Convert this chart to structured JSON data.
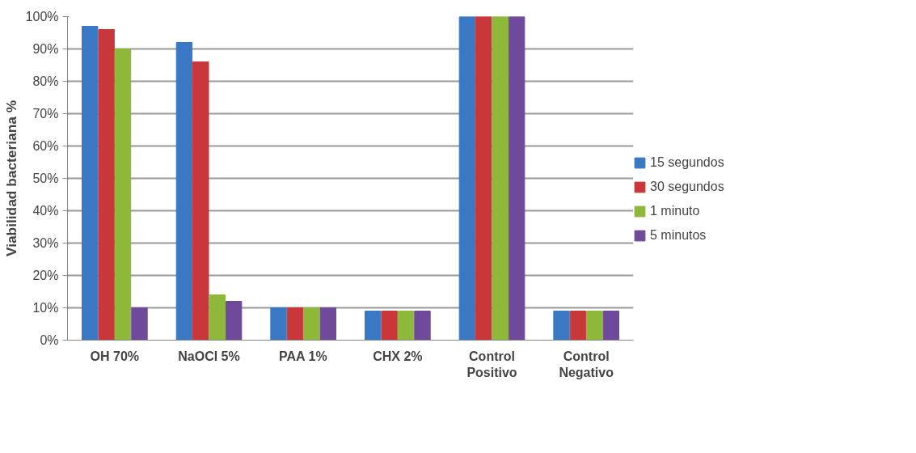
{
  "chart_data": {
    "type": "bar",
    "ylabel": "Viabilidad bacteriana %",
    "categories": [
      "OH 70%",
      "NaOCl 5%",
      "PAA 1%",
      "CHX 2%",
      "Control\nPositivo",
      "Control\nNegativo"
    ],
    "series": [
      {
        "name": "15 segundos",
        "color": "#3a78c4",
        "values": [
          97,
          92,
          10,
          9,
          100,
          9
        ]
      },
      {
        "name": "30 segundos",
        "color": "#c8383a",
        "values": [
          96,
          86,
          10,
          9,
          100,
          9
        ]
      },
      {
        "name": "1 minuto",
        "color": "#8db83a",
        "values": [
          90,
          14,
          10,
          9,
          100,
          9
        ]
      },
      {
        "name": "5 minutos",
        "color": "#6f4a9a",
        "values": [
          10,
          12,
          10,
          9,
          100,
          9
        ]
      }
    ],
    "ylim": [
      0,
      100
    ],
    "yticks": [
      {
        "value": 0,
        "label": "0%"
      },
      {
        "value": 10,
        "label": "10%"
      },
      {
        "value": 20,
        "label": "20%"
      },
      {
        "value": 30,
        "label": "30%"
      },
      {
        "value": 40,
        "label": "40%"
      },
      {
        "value": 50,
        "label": "50%"
      },
      {
        "value": 60,
        "label": "60%"
      },
      {
        "value": 70,
        "label": "70%"
      },
      {
        "value": 80,
        "label": "80%"
      },
      {
        "value": 90,
        "label": "90%"
      },
      {
        "value": 100,
        "label": "100%"
      }
    ],
    "grid": "y",
    "legend": "right"
  }
}
